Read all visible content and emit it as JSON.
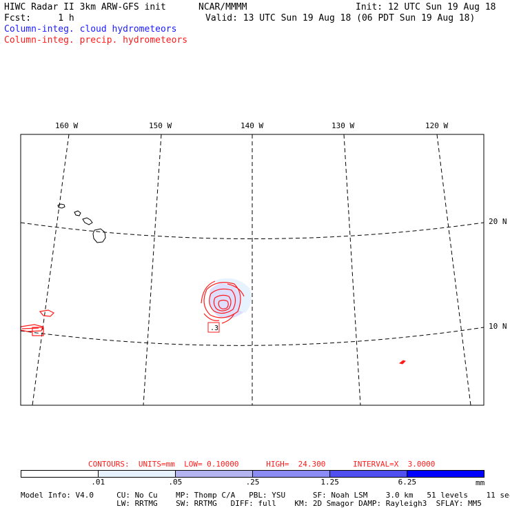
{
  "header": {
    "line1_left": "HIWC Radar II 3km ARW-GFS init",
    "line1_mid": "NCAR/MMMM",
    "line1_right": "Init: 12 UTC Sun 19 Aug 18",
    "line2_left": "Fcst:     1 h",
    "line2_right": "Valid: 13 UTC Sun 19 Aug 18 (06 PDT Sun 19 Aug 18)",
    "legend_cloud": "Column-integ. cloud hydrometeors",
    "legend_precip": "Column-integ. precip. hydrometeors"
  },
  "map": {
    "lon_labels": [
      "160 W",
      "150 W",
      "140 W",
      "130 W",
      "120 W"
    ],
    "lat_labels": [
      "20 N",
      "10 N"
    ],
    "contour_label": ".3",
    "colors": {
      "cloud": "#c8c8ff",
      "precip": "#ff1a1a",
      "coast": "#000000"
    }
  },
  "contours": {
    "text": "CONTOURS:  UNITS=mm  LOW= 0.10000      HIGH=  24.300      INTERVAL=X  3.0000"
  },
  "colorbar": {
    "colors": [
      "#ffffff",
      "#e6f3ff",
      "#b4b4f0",
      "#8c8cf5",
      "#5050f0",
      "#0000ff"
    ],
    "labels": [
      ".01",
      ".05",
      ".25",
      "1.25",
      "6.25"
    ],
    "unit": "mm"
  },
  "model_info": {
    "line1": "Model Info: V4.0     CU: No Cu    MP: Thomp C/A   PBL: YSU      SF: Noah LSM    3.0 km   51 levels    11 sec",
    "line2": "                     LW: RRTMG    SW: RRTMG   DIFF: full    KM: 2D Smagor DAMP: Rayleigh3  SFLAY: MM5"
  }
}
